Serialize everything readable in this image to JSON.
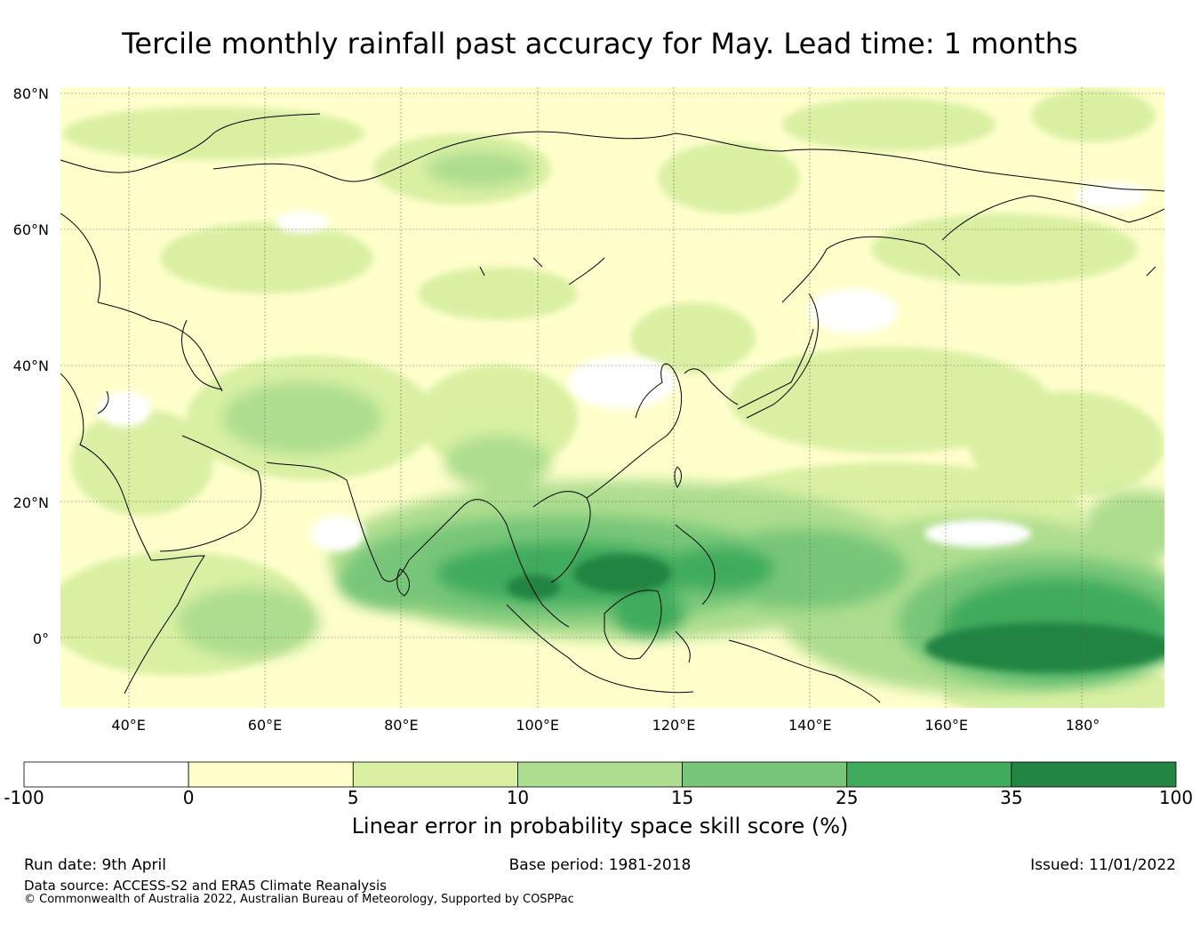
{
  "title": "Tercile monthly rainfall past accuracy for May. Lead time: 1 months",
  "map": {
    "lon_range": [
      30,
      192
    ],
    "lat_range": [
      -10,
      81
    ],
    "lat_ticks": [
      {
        "value": 80,
        "label": "80°N"
      },
      {
        "value": 60,
        "label": "60°N"
      },
      {
        "value": 40,
        "label": "40°N"
      },
      {
        "value": 20,
        "label": "20°N"
      },
      {
        "value": 0,
        "label": "0°"
      }
    ],
    "lon_ticks": [
      {
        "value": 40,
        "label": "40°E"
      },
      {
        "value": 60,
        "label": "60°E"
      },
      {
        "value": 80,
        "label": "80°E"
      },
      {
        "value": 100,
        "label": "100°E"
      },
      {
        "value": 120,
        "label": "120°E"
      },
      {
        "value": 140,
        "label": "140°E"
      },
      {
        "value": 160,
        "label": "160°E"
      },
      {
        "value": 180,
        "label": "180°"
      }
    ],
    "background_color": "#ffffcc"
  },
  "colorbar": {
    "bins": [
      {
        "from": "-100",
        "to": "0",
        "color": "#ffffff"
      },
      {
        "from": "0",
        "to": "5",
        "color": "#ffffcc"
      },
      {
        "from": "5",
        "to": "10",
        "color": "#d9f0a3"
      },
      {
        "from": "10",
        "to": "15",
        "color": "#addd8e"
      },
      {
        "from": "15",
        "to": "25",
        "color": "#78c679"
      },
      {
        "from": "25",
        "to": "35",
        "color": "#41ab5d"
      },
      {
        "from": "35",
        "to": "100",
        "color": "#238443"
      }
    ],
    "tick_labels": [
      "-100",
      "0",
      "5",
      "10",
      "15",
      "25",
      "35",
      "100"
    ],
    "label": "Linear error in probability space skill score (%)"
  },
  "footer": {
    "run_date": "Run date: 9th April",
    "base_period": "Base period: 1981-2018",
    "issued": "Issued: 11/01/2022",
    "data_source": "Data source: ACCESS-S2 and ERA5 Climate Reanalysis",
    "copyright": "© Commonwealth of Australia 2022, Australian Bureau of Meteorology, Supported by COSPPac"
  }
}
